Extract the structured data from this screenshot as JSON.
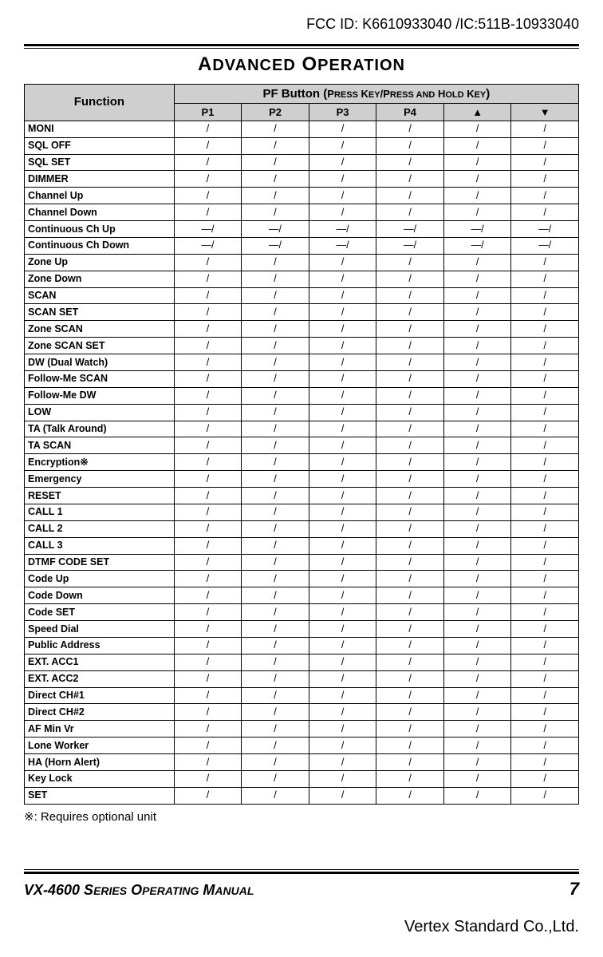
{
  "header": {
    "fcc_id": "FCC ID: K6610933040 /IC:511B-10933040",
    "section_title_html": "ADVANCED OPERATION"
  },
  "table": {
    "header": {
      "function": "Function",
      "pf_button_html": "PF Button (PRESS KEY/PRESS AND HOLD KEY)",
      "columns": [
        "P1",
        "P2",
        "P3",
        "P4",
        "▲",
        "▼"
      ]
    },
    "rows": [
      {
        "fn": "MONI",
        "cells": [
          "/",
          "/",
          "/",
          "/",
          "/",
          "/"
        ]
      },
      {
        "fn": "SQL OFF",
        "cells": [
          "/",
          "/",
          "/",
          "/",
          "/",
          "/"
        ]
      },
      {
        "fn": "SQL SET",
        "cells": [
          "/",
          "/",
          "/",
          "/",
          "/",
          "/"
        ]
      },
      {
        "fn": "DIMMER",
        "cells": [
          "/",
          "/",
          "/",
          "/",
          "/",
          "/"
        ]
      },
      {
        "fn": "Channel Up",
        "cells": [
          "/",
          "/",
          "/",
          "/",
          "/",
          "/"
        ]
      },
      {
        "fn": "Channel Down",
        "cells": [
          "/",
          "/",
          "/",
          "/",
          "/",
          "/"
        ]
      },
      {
        "fn": "Continuous Ch Up",
        "cells": [
          "—/",
          "—/",
          "—/",
          "—/",
          "—/",
          "—/"
        ]
      },
      {
        "fn": "Continuous Ch Down",
        "cells": [
          "—/",
          "—/",
          "—/",
          "—/",
          "—/",
          "—/"
        ]
      },
      {
        "fn": "Zone Up",
        "cells": [
          "/",
          "/",
          "/",
          "/",
          "/",
          "/"
        ]
      },
      {
        "fn": "Zone Down",
        "cells": [
          "/",
          "/",
          "/",
          "/",
          "/",
          "/"
        ]
      },
      {
        "fn": "SCAN",
        "cells": [
          "/",
          "/",
          "/",
          "/",
          "/",
          "/"
        ]
      },
      {
        "fn": "SCAN SET",
        "cells": [
          "/",
          "/",
          "/",
          "/",
          "/",
          "/"
        ]
      },
      {
        "fn": "Zone SCAN",
        "cells": [
          "/",
          "/",
          "/",
          "/",
          "/",
          "/"
        ]
      },
      {
        "fn": "Zone SCAN SET",
        "cells": [
          "/",
          "/",
          "/",
          "/",
          "/",
          "/"
        ]
      },
      {
        "fn": "DW (Dual Watch)",
        "cells": [
          "/",
          "/",
          "/",
          "/",
          "/",
          "/"
        ]
      },
      {
        "fn": "Follow-Me SCAN",
        "cells": [
          "/",
          "/",
          "/",
          "/",
          "/",
          "/"
        ]
      },
      {
        "fn": "Follow-Me DW",
        "cells": [
          "/",
          "/",
          "/",
          "/",
          "/",
          "/"
        ]
      },
      {
        "fn": "LOW",
        "cells": [
          "/",
          "/",
          "/",
          "/",
          "/",
          "/"
        ]
      },
      {
        "fn": "TA (Talk Around)",
        "cells": [
          "/",
          "/",
          "/",
          "/",
          "/",
          "/"
        ]
      },
      {
        "fn": "TA SCAN",
        "cells": [
          "/",
          "/",
          "/",
          "/",
          "/",
          "/"
        ]
      },
      {
        "fn": "Encryption※",
        "cells": [
          "/",
          "/",
          "/",
          "/",
          "/",
          "/"
        ]
      },
      {
        "fn": "Emergency",
        "cells": [
          "/",
          "/",
          "/",
          "/",
          "/",
          "/"
        ]
      },
      {
        "fn": "RESET",
        "cells": [
          "/",
          "/",
          "/",
          "/",
          "/",
          "/"
        ]
      },
      {
        "fn": "CALL 1",
        "cells": [
          "/",
          "/",
          "/",
          "/",
          "/",
          "/"
        ]
      },
      {
        "fn": "CALL 2",
        "cells": [
          "/",
          "/",
          "/",
          "/",
          "/",
          "/"
        ]
      },
      {
        "fn": "CALL 3",
        "cells": [
          "/",
          "/",
          "/",
          "/",
          "/",
          "/"
        ]
      },
      {
        "fn": "DTMF CODE SET",
        "cells": [
          "/",
          "/",
          "/",
          "/",
          "/",
          "/"
        ]
      },
      {
        "fn": "Code Up",
        "cells": [
          "/",
          "/",
          "/",
          "/",
          "/",
          "/"
        ]
      },
      {
        "fn": "Code Down",
        "cells": [
          "/",
          "/",
          "/",
          "/",
          "/",
          "/"
        ]
      },
      {
        "fn": "Code SET",
        "cells": [
          "/",
          "/",
          "/",
          "/",
          "/",
          "/"
        ]
      },
      {
        "fn": "Speed Dial",
        "cells": [
          "/",
          "/",
          "/",
          "/",
          "/",
          "/"
        ]
      },
      {
        "fn": "Public Address",
        "cells": [
          "/",
          "/",
          "/",
          "/",
          "/",
          "/"
        ]
      },
      {
        "fn": "EXT. ACC1",
        "cells": [
          "/",
          "/",
          "/",
          "/",
          "/",
          "/"
        ]
      },
      {
        "fn": "EXT. ACC2",
        "cells": [
          "/",
          "/",
          "/",
          "/",
          "/",
          "/"
        ]
      },
      {
        "fn": "Direct CH#1",
        "cells": [
          "/",
          "/",
          "/",
          "/",
          "/",
          "/"
        ]
      },
      {
        "fn": "Direct CH#2",
        "cells": [
          "/",
          "/",
          "/",
          "/",
          "/",
          "/"
        ]
      },
      {
        "fn": "AF Min Vr",
        "cells": [
          "/",
          "/",
          "/",
          "/",
          "/",
          "/"
        ]
      },
      {
        "fn": "Lone Worker",
        "cells": [
          "/",
          "/",
          "/",
          "/",
          "/",
          "/"
        ]
      },
      {
        "fn": "HA (Horn Alert)",
        "cells": [
          "/",
          "/",
          "/",
          "/",
          "/",
          "/"
        ]
      },
      {
        "fn": "Key Lock",
        "cells": [
          "/",
          "/",
          "/",
          "/",
          "/",
          "/"
        ]
      },
      {
        "fn": "SET",
        "cells": [
          "/",
          "/",
          "/",
          "/",
          "/",
          "/"
        ]
      }
    ]
  },
  "footnote": "※: Requires optional unit",
  "footer": {
    "manual_title": "VX-4600 SERIES OPERATING MANUAL",
    "page": "7",
    "company": "Vertex Standard Co.,Ltd."
  }
}
